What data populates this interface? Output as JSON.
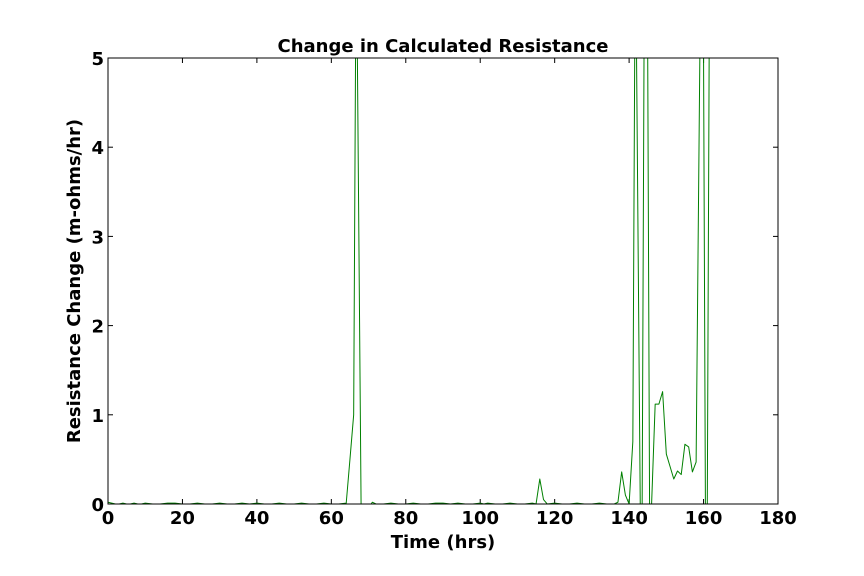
{
  "chart_data": {
    "type": "line",
    "title": "Change in Calculated Resistance",
    "xlabel": "Time (hrs)",
    "ylabel": "Resistance Change (m-ohms/hr)",
    "xlim": [
      0,
      180
    ],
    "ylim": [
      0,
      5
    ],
    "xticks": [
      "0",
      "20",
      "40",
      "60",
      "80",
      "100",
      "120",
      "140",
      "160",
      "180"
    ],
    "yticks": [
      "0",
      "1",
      "2",
      "3",
      "4",
      "5"
    ],
    "grid": false,
    "legend": "none",
    "series": [
      {
        "color": "#008000",
        "x": [
          0,
          1,
          2,
          3,
          4,
          5,
          6,
          7,
          8,
          9,
          10,
          12,
          14,
          16,
          18,
          20,
          22,
          24,
          26,
          28,
          30,
          32,
          34,
          36,
          38,
          40,
          42,
          44,
          46,
          48,
          50,
          52,
          54,
          56,
          58,
          60,
          62,
          64,
          65,
          66,
          66.5,
          67,
          68,
          70,
          71,
          72,
          74,
          76,
          78,
          80,
          82,
          84,
          86,
          88,
          90,
          92,
          94,
          96,
          98,
          100,
          101,
          102,
          104,
          106,
          108,
          110,
          112,
          114,
          115,
          116,
          117,
          118,
          120,
          122,
          124,
          126,
          128,
          130,
          132,
          134,
          136,
          137,
          138,
          139,
          140,
          141,
          141.5,
          142,
          143,
          143.5,
          144,
          145,
          145.5,
          146,
          147,
          148,
          149,
          150,
          151,
          152,
          153,
          154,
          155,
          156,
          157,
          158,
          159,
          160,
          160.5,
          161,
          161.5,
          162
        ],
        "y": [
          0.02,
          0.01,
          0.0,
          0.0,
          0.01,
          0.0,
          0.0,
          0.01,
          0.0,
          0.0,
          0.01,
          0.0,
          0.0,
          0.01,
          0.01,
          0.0,
          0.0,
          0.01,
          0.0,
          0.0,
          0.01,
          0.0,
          0.0,
          0.01,
          0.0,
          0.01,
          0.0,
          0.0,
          0.01,
          0.0,
          0.0,
          0.01,
          0.0,
          0.0,
          0.01,
          0.0,
          0.0,
          0.01,
          0.5,
          1.0,
          5.0,
          5.0,
          -0.05,
          -0.05,
          0.02,
          0.0,
          0.0,
          0.01,
          0.0,
          0.0,
          0.01,
          0.0,
          0.0,
          0.01,
          0.01,
          0.0,
          0.01,
          0.0,
          0.0,
          0.01,
          0.0,
          0.01,
          0.0,
          0.0,
          0.01,
          0.0,
          0.0,
          0.01,
          0.0,
          0.28,
          0.05,
          0.0,
          0.01,
          0.0,
          0.0,
          0.01,
          0.0,
          0.0,
          0.01,
          0.0,
          0.0,
          0.02,
          0.36,
          0.1,
          0.0,
          0.7,
          5.0,
          5.0,
          -0.05,
          -0.05,
          5.0,
          5.0,
          -0.05,
          -0.05,
          1.12,
          1.12,
          1.26,
          0.56,
          0.42,
          0.28,
          0.37,
          0.33,
          0.67,
          0.64,
          0.36,
          0.47,
          5.0,
          5.0,
          -0.05,
          -0.05,
          5.0,
          5.0
        ]
      }
    ]
  }
}
